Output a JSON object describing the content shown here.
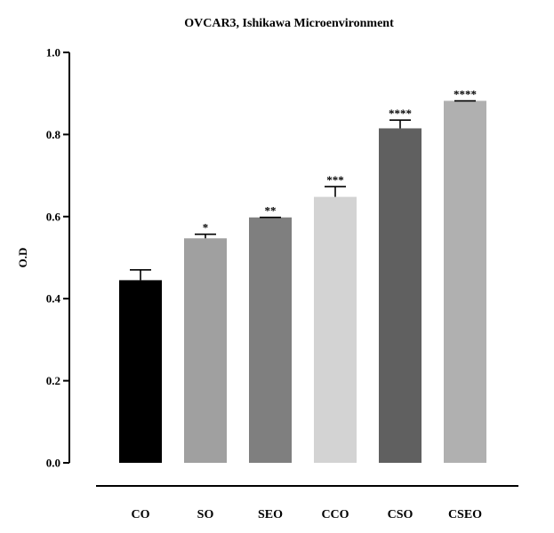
{
  "chart_data": {
    "type": "bar",
    "title": "OVCAR3, Ishikawa Microenvironment",
    "ylabel": "O.D",
    "xlabel": "",
    "ylim": [
      0,
      1.0
    ],
    "yticks": [
      "0.0",
      "0.2",
      "0.4",
      "0.6",
      "0.8",
      "1.0"
    ],
    "categories": [
      "CO",
      "SO",
      "SEO",
      "CCO",
      "CSO",
      "CSEO"
    ],
    "values": [
      0.445,
      0.547,
      0.598,
      0.648,
      0.815,
      0.882
    ],
    "errors": [
      0.025,
      0.01,
      0.0,
      0.025,
      0.02,
      0.0
    ],
    "significance": [
      "",
      "*",
      "**",
      "***",
      "****",
      "****"
    ],
    "colors": [
      "#000000",
      "#a0a0a0",
      "#7f7f7f",
      "#d3d3d3",
      "#606060",
      "#b0b0b0"
    ],
    "grid": false,
    "legend": "none"
  }
}
